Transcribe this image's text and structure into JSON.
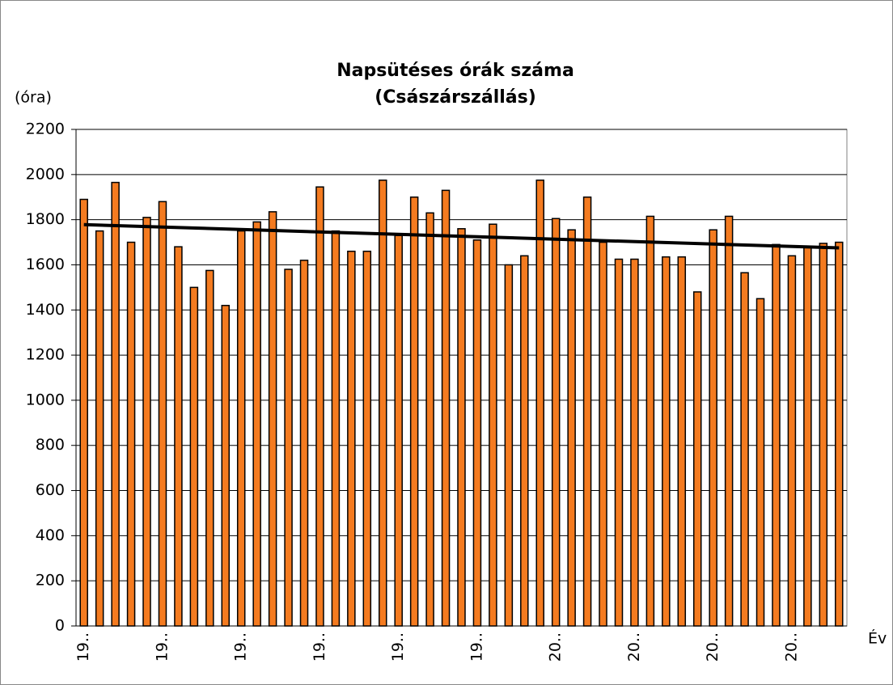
{
  "chart_data": {
    "type": "bar",
    "title": [
      "Napsütéses órák száma",
      "(Császárszállás)"
    ],
    "y_label": "(óra)",
    "x_label": "Év",
    "categories": [
      "19..",
      null,
      null,
      null,
      null,
      "19..",
      null,
      null,
      null,
      null,
      "19..",
      null,
      null,
      null,
      null,
      "19..",
      null,
      null,
      null,
      null,
      "19..",
      null,
      null,
      null,
      null,
      "19..",
      null,
      null,
      null,
      null,
      "20..",
      null,
      null,
      null,
      null,
      "20..",
      null,
      null,
      null,
      null,
      "20..",
      null,
      null,
      null,
      null,
      "20..",
      null,
      null,
      null
    ],
    "values": [
      1890,
      1750,
      1965,
      1700,
      1810,
      1880,
      1680,
      1500,
      1575,
      1420,
      1750,
      1790,
      1835,
      1580,
      1620,
      1945,
      1750,
      1660,
      1660,
      1975,
      1730,
      1900,
      1830,
      1930,
      1760,
      1710,
      1780,
      1600,
      1640,
      1975,
      1805,
      1755,
      1900,
      1700,
      1625,
      1625,
      1815,
      1635,
      1635,
      1480,
      1755,
      1815,
      1565,
      1450,
      1690,
      1640,
      1680,
      1695,
      1700
    ],
    "color": "#f47b20",
    "trend": {
      "index": [
        0,
        48
      ],
      "values": [
        1778,
        1675
      ],
      "color": "#000000"
    },
    "ylim": [
      0,
      2200
    ],
    "yticks": [
      0,
      200,
      400,
      600,
      800,
      1000,
      1200,
      1400,
      1600,
      1800,
      2000,
      2200
    ],
    "grid": true
  }
}
